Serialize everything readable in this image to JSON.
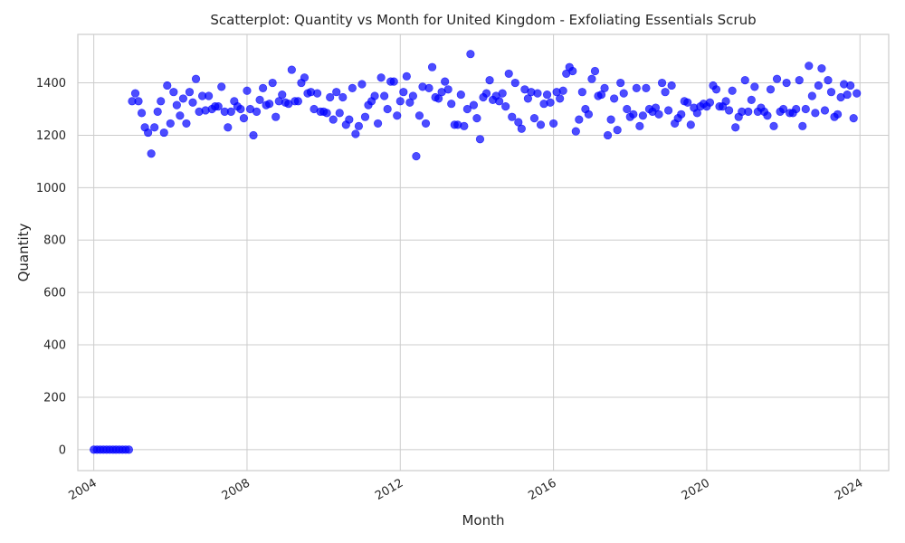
{
  "chart_data": {
    "type": "scatter",
    "title": "Scatterplot: Quantity vs Month for United Kingdom - Exfoliating Essentials Scrub",
    "xlabel": "Month",
    "ylabel": "Quantity",
    "x_ticks": [
      "2004",
      "2008",
      "2012",
      "2016",
      "2020",
      "2024"
    ],
    "y_ticks": [
      "0",
      "200",
      "400",
      "600",
      "800",
      "1000",
      "1200",
      "1400"
    ],
    "xlim": [
      "2003-08",
      "2024-10"
    ],
    "ylim": [
      -80,
      1585
    ],
    "grid": true,
    "marker_color": "#0000ff",
    "series": [
      {
        "points": [
          [
            "2004-01",
            0
          ],
          [
            "2004-02",
            0
          ],
          [
            "2004-03",
            0
          ],
          [
            "2004-04",
            0
          ],
          [
            "2004-05",
            0
          ],
          [
            "2004-06",
            0
          ],
          [
            "2004-07",
            0
          ],
          [
            "2004-08",
            0
          ],
          [
            "2004-09",
            0
          ],
          [
            "2004-10",
            0
          ],
          [
            "2004-11",
            0
          ],
          [
            "2004-12",
            0
          ],
          [
            "2005-01",
            1330
          ],
          [
            "2005-02",
            1360
          ],
          [
            "2005-03",
            1330
          ],
          [
            "2005-04",
            1285
          ],
          [
            "2005-05",
            1230
          ],
          [
            "2005-06",
            1210
          ],
          [
            "2005-07",
            1130
          ],
          [
            "2005-08",
            1230
          ],
          [
            "2005-09",
            1290
          ],
          [
            "2005-10",
            1330
          ],
          [
            "2005-11",
            1210
          ],
          [
            "2005-12",
            1390
          ],
          [
            "2006-01",
            1245
          ],
          [
            "2006-02",
            1365
          ],
          [
            "2006-03",
            1315
          ],
          [
            "2006-04",
            1275
          ],
          [
            "2006-05",
            1340
          ],
          [
            "2006-06",
            1245
          ],
          [
            "2006-07",
            1365
          ],
          [
            "2006-08",
            1325
          ],
          [
            "2006-09",
            1415
          ],
          [
            "2006-10",
            1290
          ],
          [
            "2006-11",
            1350
          ],
          [
            "2006-12",
            1295
          ],
          [
            "2007-01",
            1350
          ],
          [
            "2007-02",
            1300
          ],
          [
            "2007-03",
            1310
          ],
          [
            "2007-04",
            1310
          ],
          [
            "2007-05",
            1385
          ],
          [
            "2007-06",
            1290
          ],
          [
            "2007-07",
            1230
          ],
          [
            "2007-08",
            1290
          ],
          [
            "2007-09",
            1330
          ],
          [
            "2007-10",
            1310
          ],
          [
            "2007-11",
            1300
          ],
          [
            "2007-12",
            1265
          ],
          [
            "2008-01",
            1370
          ],
          [
            "2008-02",
            1300
          ],
          [
            "2008-03",
            1200
          ],
          [
            "2008-04",
            1290
          ],
          [
            "2008-05",
            1335
          ],
          [
            "2008-06",
            1380
          ],
          [
            "2008-07",
            1315
          ],
          [
            "2008-08",
            1320
          ],
          [
            "2008-09",
            1400
          ],
          [
            "2008-10",
            1270
          ],
          [
            "2008-11",
            1330
          ],
          [
            "2008-12",
            1355
          ],
          [
            "2009-01",
            1325
          ],
          [
            "2009-02",
            1320
          ],
          [
            "2009-03",
            1450
          ],
          [
            "2009-04",
            1330
          ],
          [
            "2009-05",
            1330
          ],
          [
            "2009-06",
            1400
          ],
          [
            "2009-07",
            1420
          ],
          [
            "2009-08",
            1360
          ],
          [
            "2009-09",
            1365
          ],
          [
            "2009-10",
            1300
          ],
          [
            "2009-11",
            1360
          ],
          [
            "2009-12",
            1290
          ],
          [
            "2010-01",
            1290
          ],
          [
            "2010-02",
            1285
          ],
          [
            "2010-03",
            1345
          ],
          [
            "2010-04",
            1260
          ],
          [
            "2010-05",
            1365
          ],
          [
            "2010-06",
            1285
          ],
          [
            "2010-07",
            1345
          ],
          [
            "2010-08",
            1240
          ],
          [
            "2010-09",
            1260
          ],
          [
            "2010-10",
            1380
          ],
          [
            "2010-11",
            1205
          ],
          [
            "2010-12",
            1235
          ],
          [
            "2011-01",
            1395
          ],
          [
            "2011-02",
            1270
          ],
          [
            "2011-03",
            1315
          ],
          [
            "2011-04",
            1330
          ],
          [
            "2011-05",
            1350
          ],
          [
            "2011-06",
            1245
          ],
          [
            "2011-07",
            1420
          ],
          [
            "2011-08",
            1350
          ],
          [
            "2011-09",
            1300
          ],
          [
            "2011-10",
            1405
          ],
          [
            "2011-11",
            1405
          ],
          [
            "2011-12",
            1275
          ],
          [
            "2012-01",
            1330
          ],
          [
            "2012-02",
            1365
          ],
          [
            "2012-03",
            1425
          ],
          [
            "2012-04",
            1325
          ],
          [
            "2012-05",
            1350
          ],
          [
            "2012-06",
            1120
          ],
          [
            "2012-07",
            1275
          ],
          [
            "2012-08",
            1385
          ],
          [
            "2012-09",
            1245
          ],
          [
            "2012-10",
            1380
          ],
          [
            "2012-11",
            1460
          ],
          [
            "2012-12",
            1345
          ],
          [
            "2013-01",
            1340
          ],
          [
            "2013-02",
            1365
          ],
          [
            "2013-03",
            1405
          ],
          [
            "2013-04",
            1375
          ],
          [
            "2013-05",
            1320
          ],
          [
            "2013-06",
            1240
          ],
          [
            "2013-07",
            1240
          ],
          [
            "2013-08",
            1355
          ],
          [
            "2013-09",
            1235
          ],
          [
            "2013-10",
            1300
          ],
          [
            "2013-11",
            1510
          ],
          [
            "2013-12",
            1315
          ],
          [
            "2014-01",
            1265
          ],
          [
            "2014-02",
            1185
          ],
          [
            "2014-03",
            1345
          ],
          [
            "2014-04",
            1360
          ],
          [
            "2014-05",
            1410
          ],
          [
            "2014-06",
            1335
          ],
          [
            "2014-07",
            1350
          ],
          [
            "2014-08",
            1330
          ],
          [
            "2014-09",
            1360
          ],
          [
            "2014-10",
            1310
          ],
          [
            "2014-11",
            1435
          ],
          [
            "2014-12",
            1270
          ],
          [
            "2015-01",
            1400
          ],
          [
            "2015-02",
            1250
          ],
          [
            "2015-03",
            1225
          ],
          [
            "2015-04",
            1375
          ],
          [
            "2015-05",
            1340
          ],
          [
            "2015-06",
            1365
          ],
          [
            "2015-07",
            1265
          ],
          [
            "2015-08",
            1360
          ],
          [
            "2015-09",
            1240
          ],
          [
            "2015-10",
            1320
          ],
          [
            "2015-11",
            1355
          ],
          [
            "2015-12",
            1325
          ],
          [
            "2016-01",
            1245
          ],
          [
            "2016-02",
            1365
          ],
          [
            "2016-03",
            1340
          ],
          [
            "2016-04",
            1370
          ],
          [
            "2016-05",
            1435
          ],
          [
            "2016-06",
            1460
          ],
          [
            "2016-07",
            1445
          ],
          [
            "2016-08",
            1215
          ],
          [
            "2016-09",
            1260
          ],
          [
            "2016-10",
            1365
          ],
          [
            "2016-11",
            1300
          ],
          [
            "2016-12",
            1280
          ],
          [
            "2017-01",
            1415
          ],
          [
            "2017-02",
            1445
          ],
          [
            "2017-03",
            1350
          ],
          [
            "2017-04",
            1355
          ],
          [
            "2017-05",
            1380
          ],
          [
            "2017-06",
            1200
          ],
          [
            "2017-07",
            1260
          ],
          [
            "2017-08",
            1340
          ],
          [
            "2017-09",
            1220
          ],
          [
            "2017-10",
            1400
          ],
          [
            "2017-11",
            1360
          ],
          [
            "2017-12",
            1300
          ],
          [
            "2018-01",
            1270
          ],
          [
            "2018-02",
            1280
          ],
          [
            "2018-03",
            1380
          ],
          [
            "2018-04",
            1235
          ],
          [
            "2018-05",
            1275
          ],
          [
            "2018-06",
            1380
          ],
          [
            "2018-07",
            1300
          ],
          [
            "2018-08",
            1290
          ],
          [
            "2018-09",
            1305
          ],
          [
            "2018-10",
            1280
          ],
          [
            "2018-11",
            1400
          ],
          [
            "2018-12",
            1365
          ],
          [
            "2019-01",
            1295
          ],
          [
            "2019-02",
            1390
          ],
          [
            "2019-03",
            1245
          ],
          [
            "2019-04",
            1265
          ],
          [
            "2019-05",
            1280
          ],
          [
            "2019-06",
            1330
          ],
          [
            "2019-07",
            1325
          ],
          [
            "2019-08",
            1240
          ],
          [
            "2019-09",
            1305
          ],
          [
            "2019-10",
            1285
          ],
          [
            "2019-11",
            1310
          ],
          [
            "2019-12",
            1320
          ],
          [
            "2020-01",
            1310
          ],
          [
            "2020-02",
            1325
          ],
          [
            "2020-03",
            1390
          ],
          [
            "2020-04",
            1375
          ],
          [
            "2020-05",
            1310
          ],
          [
            "2020-06",
            1310
          ],
          [
            "2020-07",
            1330
          ],
          [
            "2020-08",
            1295
          ],
          [
            "2020-09",
            1370
          ],
          [
            "2020-10",
            1230
          ],
          [
            "2020-11",
            1270
          ],
          [
            "2020-12",
            1290
          ],
          [
            "2021-01",
            1410
          ],
          [
            "2021-02",
            1290
          ],
          [
            "2021-03",
            1335
          ],
          [
            "2021-04",
            1385
          ],
          [
            "2021-05",
            1290
          ],
          [
            "2021-06",
            1305
          ],
          [
            "2021-07",
            1290
          ],
          [
            "2021-08",
            1275
          ],
          [
            "2021-09",
            1375
          ],
          [
            "2021-10",
            1235
          ],
          [
            "2021-11",
            1415
          ],
          [
            "2021-12",
            1290
          ],
          [
            "2022-01",
            1300
          ],
          [
            "2022-02",
            1400
          ],
          [
            "2022-03",
            1285
          ],
          [
            "2022-04",
            1285
          ],
          [
            "2022-05",
            1300
          ],
          [
            "2022-06",
            1410
          ],
          [
            "2022-07",
            1235
          ],
          [
            "2022-08",
            1300
          ],
          [
            "2022-09",
            1465
          ],
          [
            "2022-10",
            1350
          ],
          [
            "2022-11",
            1285
          ],
          [
            "2022-12",
            1390
          ],
          [
            "2023-01",
            1455
          ],
          [
            "2023-02",
            1295
          ],
          [
            "2023-03",
            1410
          ],
          [
            "2023-04",
            1365
          ],
          [
            "2023-05",
            1270
          ],
          [
            "2023-06",
            1280
          ],
          [
            "2023-07",
            1345
          ],
          [
            "2023-08",
            1395
          ],
          [
            "2023-09",
            1355
          ],
          [
            "2023-10",
            1390
          ],
          [
            "2023-11",
            1265
          ],
          [
            "2023-12",
            1360
          ]
        ]
      }
    ]
  }
}
